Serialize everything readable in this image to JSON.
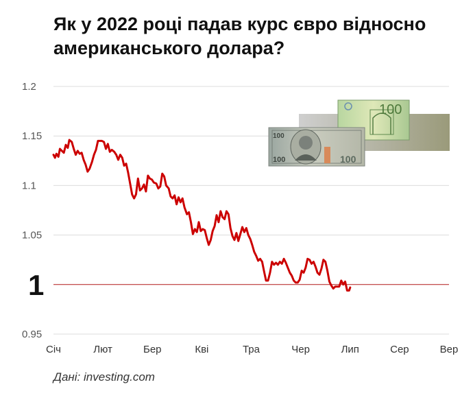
{
  "title": "Як у 2022 році падав курс євро відносно американського долара?",
  "source": "Дані: investing.com",
  "colors": {
    "line": "#cc0000",
    "reference_line": "#b01818",
    "grid": "#dcdcdc",
    "text": "#111111"
  },
  "chart_data": {
    "type": "line",
    "title": "Як у 2022 році падав курс євро відносно американського долара?",
    "xlabel": "",
    "ylabel": "",
    "ylim": [
      0.95,
      1.2
    ],
    "grid": true,
    "legend": "none",
    "yticks": [
      1.2,
      1.15,
      1.1,
      1.05,
      1,
      0.95
    ],
    "ytick_labels": [
      "1.2",
      "1.15",
      "1.1",
      "1.05",
      "1",
      "0.95"
    ],
    "xlim": [
      0,
      8
    ],
    "xticks": [
      0,
      1,
      2,
      3,
      4,
      5,
      6,
      7,
      8
    ],
    "xtick_labels": [
      "Січ",
      "Лют",
      "Бер",
      "Кві",
      "Тра",
      "Чер",
      "Лип",
      "Сер",
      "Вер"
    ],
    "reference_line": {
      "y": 1
    },
    "series": [
      {
        "values": [
          [
            0.0,
            1.131
          ],
          [
            0.03,
            1.128
          ],
          [
            0.06,
            1.132
          ],
          [
            0.1,
            1.129
          ],
          [
            0.13,
            1.137
          ],
          [
            0.17,
            1.135
          ],
          [
            0.21,
            1.133
          ],
          [
            0.25,
            1.141
          ],
          [
            0.29,
            1.138
          ],
          [
            0.32,
            1.146
          ],
          [
            0.37,
            1.144
          ],
          [
            0.41,
            1.137
          ],
          [
            0.45,
            1.131
          ],
          [
            0.49,
            1.135
          ],
          [
            0.53,
            1.132
          ],
          [
            0.57,
            1.133
          ],
          [
            0.61,
            1.126
          ],
          [
            0.65,
            1.121
          ],
          [
            0.69,
            1.114
          ],
          [
            0.73,
            1.117
          ],
          [
            0.78,
            1.124
          ],
          [
            0.82,
            1.131
          ],
          [
            0.86,
            1.136
          ],
          [
            0.9,
            1.145
          ],
          [
            0.94,
            1.145
          ],
          [
            0.98,
            1.145
          ],
          [
            1.02,
            1.144
          ],
          [
            1.06,
            1.137
          ],
          [
            1.1,
            1.142
          ],
          [
            1.14,
            1.134
          ],
          [
            1.18,
            1.136
          ],
          [
            1.23,
            1.134
          ],
          [
            1.27,
            1.131
          ],
          [
            1.31,
            1.126
          ],
          [
            1.35,
            1.131
          ],
          [
            1.39,
            1.128
          ],
          [
            1.43,
            1.12
          ],
          [
            1.47,
            1.122
          ],
          [
            1.51,
            1.113
          ],
          [
            1.55,
            1.102
          ],
          [
            1.59,
            1.091
          ],
          [
            1.63,
            1.087
          ],
          [
            1.67,
            1.091
          ],
          [
            1.71,
            1.107
          ],
          [
            1.75,
            1.095
          ],
          [
            1.79,
            1.097
          ],
          [
            1.83,
            1.101
          ],
          [
            1.87,
            1.094
          ],
          [
            1.91,
            1.11
          ],
          [
            1.95,
            1.107
          ],
          [
            1.99,
            1.106
          ],
          [
            2.03,
            1.103
          ],
          [
            2.08,
            1.102
          ],
          [
            2.12,
            1.097
          ],
          [
            2.16,
            1.099
          ],
          [
            2.2,
            1.112
          ],
          [
            2.24,
            1.109
          ],
          [
            2.28,
            1.1
          ],
          [
            2.33,
            1.097
          ],
          [
            2.37,
            1.089
          ],
          [
            2.41,
            1.087
          ],
          [
            2.45,
            1.09
          ],
          [
            2.49,
            1.081
          ],
          [
            2.53,
            1.088
          ],
          [
            2.57,
            1.083
          ],
          [
            2.61,
            1.087
          ],
          [
            2.65,
            1.078
          ],
          [
            2.7,
            1.071
          ],
          [
            2.74,
            1.073
          ],
          [
            2.78,
            1.063
          ],
          [
            2.82,
            1.051
          ],
          [
            2.86,
            1.056
          ],
          [
            2.9,
            1.053
          ],
          [
            2.94,
            1.063
          ],
          [
            2.98,
            1.054
          ],
          [
            3.02,
            1.056
          ],
          [
            3.06,
            1.055
          ],
          [
            3.1,
            1.047
          ],
          [
            3.14,
            1.04
          ],
          [
            3.18,
            1.045
          ],
          [
            3.22,
            1.054
          ],
          [
            3.26,
            1.059
          ],
          [
            3.3,
            1.07
          ],
          [
            3.34,
            1.063
          ],
          [
            3.38,
            1.074
          ],
          [
            3.42,
            1.068
          ],
          [
            3.46,
            1.066
          ],
          [
            3.5,
            1.074
          ],
          [
            3.54,
            1.071
          ],
          [
            3.58,
            1.057
          ],
          [
            3.62,
            1.049
          ],
          [
            3.66,
            1.045
          ],
          [
            3.7,
            1.052
          ],
          [
            3.74,
            1.044
          ],
          [
            3.78,
            1.051
          ],
          [
            3.82,
            1.058
          ],
          [
            3.86,
            1.053
          ],
          [
            3.9,
            1.057
          ],
          [
            3.94,
            1.05
          ],
          [
            3.98,
            1.046
          ],
          [
            4.02,
            1.04
          ],
          [
            4.06,
            1.033
          ],
          [
            4.1,
            1.029
          ],
          [
            4.14,
            1.024
          ],
          [
            4.18,
            1.026
          ],
          [
            4.22,
            1.023
          ],
          [
            4.26,
            1.013
          ],
          [
            4.3,
            1.004
          ],
          [
            4.34,
            1.004
          ],
          [
            4.38,
            1.012
          ],
          [
            4.42,
            1.023
          ],
          [
            4.46,
            1.02
          ],
          [
            4.5,
            1.022
          ],
          [
            4.54,
            1.02
          ],
          [
            4.58,
            1.023
          ],
          [
            4.62,
            1.021
          ],
          [
            4.66,
            1.026
          ],
          [
            4.7,
            1.022
          ],
          [
            4.74,
            1.017
          ],
          [
            4.78,
            1.012
          ],
          [
            4.82,
            1.009
          ],
          [
            4.86,
            1.004
          ],
          [
            4.9,
            1.002
          ],
          [
            4.94,
            1.002
          ],
          [
            4.98,
            1.005
          ],
          [
            5.02,
            1.014
          ],
          [
            5.06,
            1.012
          ],
          [
            5.1,
            1.017
          ],
          [
            5.14,
            1.026
          ],
          [
            5.18,
            1.025
          ],
          [
            5.22,
            1.021
          ],
          [
            5.26,
            1.023
          ],
          [
            5.3,
            1.018
          ],
          [
            5.34,
            1.012
          ],
          [
            5.38,
            1.01
          ],
          [
            5.42,
            1.016
          ],
          [
            5.46,
            1.025
          ],
          [
            5.5,
            1.023
          ],
          [
            5.54,
            1.014
          ],
          [
            5.58,
            1.003
          ],
          [
            5.62,
            0.999
          ],
          [
            5.66,
            0.996
          ],
          [
            5.7,
            0.998
          ],
          [
            5.74,
            0.998
          ],
          [
            5.78,
            0.998
          ],
          [
            5.82,
            1.004
          ],
          [
            5.86,
            1.0
          ],
          [
            5.9,
            1.003
          ],
          [
            5.94,
            0.994
          ],
          [
            5.98,
            0.994
          ],
          [
            6.0,
            0.997
          ]
        ]
      }
    ]
  }
}
